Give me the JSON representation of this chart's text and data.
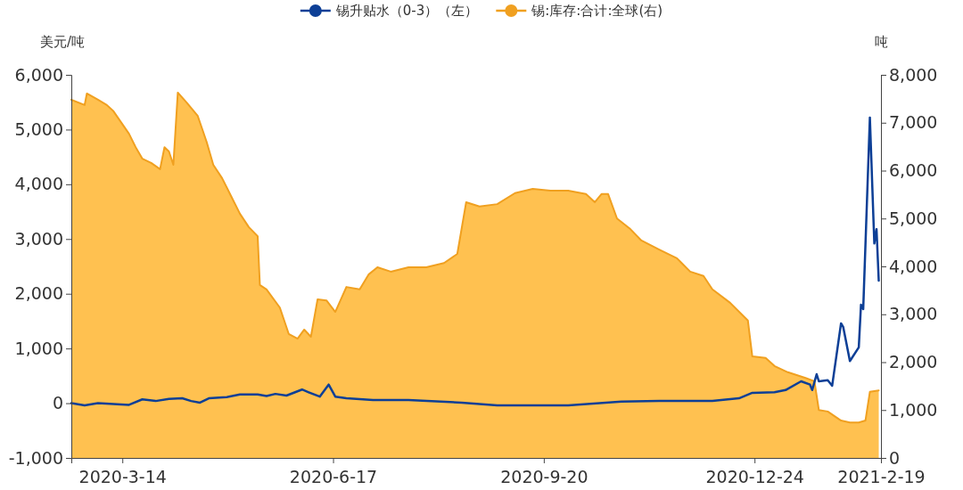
{
  "chart_data": {
    "type": "line",
    "ylabel": "美元/吨",
    "y2label": "吨",
    "legend": "top",
    "grid": false,
    "xlim": [
      "2020-02-20",
      "2021-02-19"
    ],
    "xticks": [
      {
        "value": "2020-03-14",
        "label": "2020-3-14"
      },
      {
        "value": "2020-06-17",
        "label": "2020-6-17"
      },
      {
        "value": "2020-09-20",
        "label": "2020-9-20"
      },
      {
        "value": "2020-12-24",
        "label": "2020-12-24"
      },
      {
        "value": "2021-02-19",
        "label": "2021-2-19"
      }
    ],
    "ylim": [
      -1000,
      6000
    ],
    "yticks": [
      {
        "value": -1000,
        "label": "-1,000"
      },
      0,
      {
        "value": 1000,
        "label": "1,000"
      },
      {
        "value": 2000,
        "label": "2,000"
      },
      {
        "value": 3000,
        "label": "3,000"
      },
      {
        "value": 4000,
        "label": "4,000"
      },
      {
        "value": 5000,
        "label": "5,000"
      },
      {
        "value": 6000,
        "label": "6,000"
      }
    ],
    "y2lim": [
      0,
      8000
    ],
    "y2ticks": [
      0,
      {
        "value": 1000,
        "label": "1,000"
      },
      {
        "value": 2000,
        "label": "2,000"
      },
      {
        "value": 3000,
        "label": "3,000"
      },
      {
        "value": 4000,
        "label": "4,000"
      },
      {
        "value": 5000,
        "label": "5,000"
      },
      {
        "value": 6000,
        "label": "6,000"
      },
      {
        "value": 7000,
        "label": "7,000"
      },
      {
        "value": 8000,
        "label": "8,000"
      }
    ],
    "series": [
      {
        "name": "锡升贴水（0-3）（左）",
        "axis": "y",
        "color": "#0d3f96",
        "x": [
          "2020-02-20",
          "2020-02-26",
          "2020-03-03",
          "2020-03-17",
          "2020-03-23",
          "2020-03-29",
          "2020-04-04",
          "2020-04-10",
          "2020-04-14",
          "2020-04-18",
          "2020-04-22",
          "2020-04-30",
          "2020-05-06",
          "2020-05-14",
          "2020-05-18",
          "2020-05-22",
          "2020-05-27",
          "2020-06-03",
          "2020-06-06",
          "2020-06-11",
          "2020-06-15",
          "2020-06-18",
          "2020-06-23",
          "2020-07-05",
          "2020-07-21",
          "2020-08-14",
          "2020-08-30",
          "2020-09-15",
          "2020-10-01",
          "2020-10-25",
          "2020-11-11",
          "2020-12-05",
          "2020-12-17",
          "2020-12-23",
          "2021-01-02",
          "2021-01-07",
          "2021-01-14",
          "2021-01-18",
          "2021-01-19",
          "2021-01-21",
          "2021-01-22",
          "2021-01-26",
          "2021-01-28",
          "2021-02-01",
          "2021-02-02",
          "2021-02-05",
          "2021-02-09",
          "2021-02-10",
          "2021-02-11",
          "2021-02-14",
          "2021-02-16",
          "2021-02-17",
          "2021-02-18"
        ],
        "values": [
          0,
          -40,
          0,
          -30,
          70,
          40,
          80,
          90,
          40,
          10,
          90,
          110,
          160,
          160,
          130,
          170,
          140,
          250,
          200,
          120,
          340,
          120,
          90,
          60,
          60,
          10,
          -40,
          -40,
          -40,
          30,
          40,
          40,
          90,
          190,
          200,
          240,
          400,
          340,
          240,
          530,
          400,
          420,
          320,
          1460,
          1390,
          770,
          1020,
          1800,
          1720,
          5220,
          2920,
          3180,
          2240
        ]
      },
      {
        "name": "锡:库存:合计:全球(右)",
        "type": "area",
        "axis": "y2",
        "color": "#f0a020",
        "x": [
          "2020-02-20",
          "2020-02-26",
          "2020-02-27",
          "2020-03-03",
          "2020-03-07",
          "2020-03-10",
          "2020-03-17",
          "2020-03-20",
          "2020-03-23",
          "2020-03-27",
          "2020-03-31",
          "2020-04-02",
          "2020-04-04",
          "2020-04-06",
          "2020-04-08",
          "2020-04-12",
          "2020-04-17",
          "2020-04-21",
          "2020-04-24",
          "2020-04-28",
          "2020-05-02",
          "2020-05-06",
          "2020-05-10",
          "2020-05-14",
          "2020-05-15",
          "2020-05-18",
          "2020-05-24",
          "2020-05-28",
          "2020-06-01",
          "2020-06-04",
          "2020-06-07",
          "2020-06-10",
          "2020-06-14",
          "2020-06-18",
          "2020-06-23",
          "2020-06-29",
          "2020-07-03",
          "2020-07-07",
          "2020-07-13",
          "2020-07-21",
          "2020-07-29",
          "2020-08-06",
          "2020-08-12",
          "2020-08-16",
          "2020-08-22",
          "2020-08-30",
          "2020-09-07",
          "2020-09-15",
          "2020-09-23",
          "2020-10-01",
          "2020-10-09",
          "2020-10-13",
          "2020-10-16",
          "2020-10-19",
          "2020-10-23",
          "2020-10-29",
          "2020-11-03",
          "2020-11-11",
          "2020-11-19",
          "2020-11-25",
          "2020-12-01",
          "2020-12-05",
          "2020-12-13",
          "2020-12-21",
          "2020-12-23",
          "2020-12-29",
          "2021-01-02",
          "2021-01-08",
          "2021-01-16",
          "2021-01-20",
          "2021-01-22",
          "2021-01-26",
          "2021-02-01",
          "2021-02-05",
          "2021-02-09",
          "2021-02-12",
          "2021-02-14",
          "2021-02-18"
        ],
        "values": [
          7480,
          7370,
          7610,
          7480,
          7370,
          7240,
          6770,
          6490,
          6250,
          6160,
          6030,
          6490,
          6400,
          6120,
          7630,
          7420,
          7140,
          6600,
          6120,
          5840,
          5470,
          5100,
          4820,
          4630,
          3610,
          3520,
          3140,
          2590,
          2490,
          2680,
          2530,
          3310,
          3290,
          3050,
          3570,
          3520,
          3830,
          3980,
          3890,
          3980,
          3980,
          4070,
          4260,
          5340,
          5250,
          5300,
          5530,
          5620,
          5580,
          5580,
          5510,
          5340,
          5510,
          5510,
          5000,
          4780,
          4540,
          4350,
          4170,
          3890,
          3800,
          3520,
          3240,
          2870,
          2120,
          2090,
          1920,
          1790,
          1670,
          1600,
          1000,
          970,
          780,
          740,
          740,
          780,
          1380,
          1410
        ]
      }
    ]
  }
}
